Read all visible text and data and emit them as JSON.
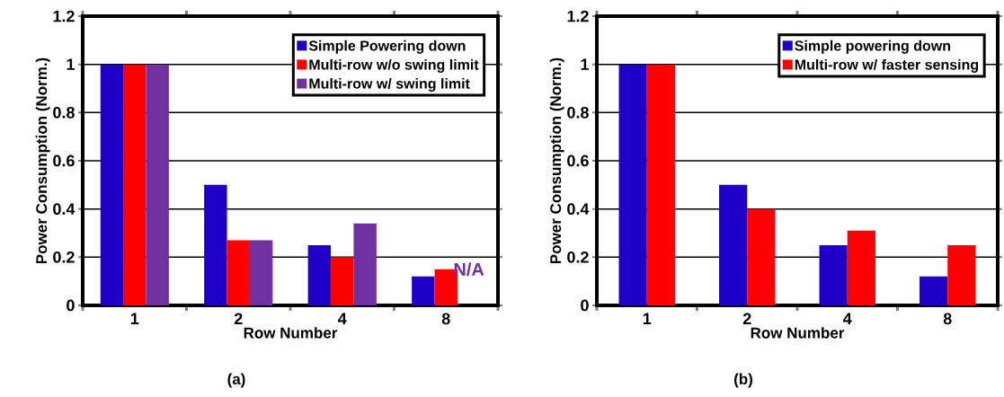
{
  "chart_data": [
    {
      "type": "bar",
      "xlabel": "Row Number",
      "ylabel": "Power Consumption (Norm.)",
      "categories": [
        "1",
        "2",
        "4",
        "8"
      ],
      "series": [
        {
          "name": "Simple Powering down",
          "color": "#1f00c8",
          "values": [
            1,
            0.5,
            0.25,
            0.12
          ]
        },
        {
          "name": "Multi-row w/o swing limit",
          "color": "#ff0000",
          "values": [
            1,
            0.27,
            0.2,
            0.15
          ]
        },
        {
          "name": "Multi-row w/ swing limit",
          "color": "#7030a0",
          "values": [
            1,
            0.27,
            0.34,
            null
          ]
        }
      ],
      "ylim": [
        0,
        1.2
      ],
      "yticks": [
        0,
        0.2,
        0.4,
        0.6,
        0.8,
        1,
        1.2
      ],
      "grid": "y",
      "legend": "top right",
      "annotations": [
        {
          "text": "N/A",
          "x": "8",
          "y": 0.15
        },
        "(a)"
      ]
    },
    {
      "type": "bar",
      "xlabel": "Row Number",
      "ylabel": "Power Consumption (Norm.)",
      "categories": [
        "1",
        "2",
        "4",
        "8"
      ],
      "series": [
        {
          "name": "Simple powering down",
          "color": "#1f00c8",
          "values": [
            1,
            0.5,
            0.25,
            0.12
          ]
        },
        {
          "name": "Multi-row w/ faster sensing",
          "color": "#ff0000",
          "values": [
            1,
            0.4,
            0.31,
            0.25
          ]
        }
      ],
      "ylim": [
        0,
        1.2
      ],
      "yticks": [
        0,
        0.2,
        0.4,
        0.6,
        0.8,
        1,
        1.2
      ],
      "grid": "y",
      "legend": "top right",
      "annotations": [
        "(b)"
      ]
    }
  ]
}
